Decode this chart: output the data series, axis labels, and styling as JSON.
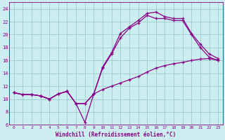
{
  "xlabel": "Windchill (Refroidissement éolien,°C)",
  "ylabel": "",
  "bg_color": "#cceef0",
  "line_color": "#880088",
  "grid_color": "#99cccc",
  "xlim": [
    -0.5,
    23.5
  ],
  "ylim": [
    6,
    25
  ],
  "xticks": [
    0,
    1,
    2,
    3,
    4,
    5,
    6,
    7,
    8,
    9,
    10,
    11,
    12,
    13,
    14,
    15,
    16,
    17,
    18,
    19,
    20,
    21,
    22,
    23
  ],
  "yticks": [
    6,
    8,
    10,
    12,
    14,
    16,
    18,
    20,
    22,
    24
  ],
  "line1_x": [
    0,
    1,
    2,
    3,
    4,
    5,
    6,
    7,
    8,
    9,
    10,
    11,
    12,
    13,
    14,
    15,
    16,
    17,
    18,
    19,
    20,
    21,
    22,
    23
  ],
  "line1_y": [
    11,
    10.7,
    10.7,
    10.5,
    10,
    10.8,
    11.2,
    9.3,
    6.4,
    10.8,
    15.0,
    17.2,
    20.2,
    21.2,
    22.2,
    23.3,
    23.5,
    22.8,
    22.5,
    22.5,
    20.2,
    18.5,
    17.0,
    16.3
  ],
  "line2_x": [
    0,
    1,
    2,
    3,
    4,
    5,
    6,
    7,
    8,
    9,
    10,
    11,
    12,
    13,
    14,
    15,
    16,
    17,
    18,
    19,
    20,
    21,
    22,
    23
  ],
  "line2_y": [
    11,
    10.7,
    10.7,
    10.5,
    10,
    10.8,
    11.2,
    9.3,
    9.3,
    10.8,
    14.8,
    17.0,
    19.5,
    21.0,
    21.8,
    23.0,
    22.5,
    22.5,
    22.2,
    22.2,
    20.0,
    18.0,
    16.5,
    16.0
  ],
  "line3_x": [
    0,
    1,
    2,
    3,
    4,
    5,
    6,
    7,
    8,
    9,
    10,
    11,
    12,
    13,
    14,
    15,
    16,
    17,
    18,
    19,
    20,
    21,
    22,
    23
  ],
  "line3_y": [
    11,
    10.7,
    10.7,
    10.5,
    10,
    10.8,
    11.2,
    9.3,
    9.3,
    10.8,
    11.5,
    12.0,
    12.5,
    13.0,
    13.5,
    14.2,
    14.8,
    15.2,
    15.5,
    15.7,
    16.0,
    16.2,
    16.3,
    16.0
  ]
}
